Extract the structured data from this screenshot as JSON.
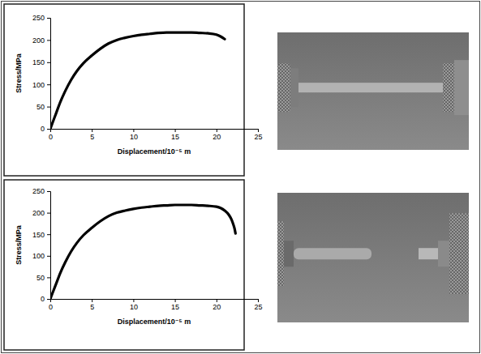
{
  "chart_data": [
    {
      "type": "line",
      "x_label": "Displacement/10⁻⁵ m",
      "y_label": "Stress/MPa",
      "x": [
        0,
        0.3,
        0.7,
        1.2,
        1.8,
        2.5,
        3.2,
        4.0,
        5.0,
        6.0,
        7.0,
        8.0,
        9.0,
        10.0,
        11.0,
        12.0,
        13.0,
        14.0,
        15.0,
        16.0,
        17.0,
        18.0,
        19.0,
        20.0,
        20.5,
        21.0
      ],
      "values": [
        0,
        15,
        35,
        60,
        85,
        110,
        130,
        148,
        165,
        180,
        192,
        200,
        205,
        209,
        212,
        214,
        216,
        217,
        217,
        217,
        217,
        216,
        215,
        212,
        208,
        202
      ],
      "color": "#000000",
      "xlim": [
        0,
        25
      ],
      "xticks": [
        0,
        5,
        10,
        15,
        20,
        25
      ],
      "ylim": [
        0,
        250
      ],
      "yticks": [
        0,
        50,
        100,
        150,
        200,
        250
      ]
    },
    {
      "type": "line",
      "x_label": "Displacement/10⁻⁵ m",
      "y_label": "Stress/MPa",
      "x": [
        0,
        0.3,
        0.7,
        1.2,
        1.8,
        2.5,
        3.2,
        4.0,
        5.0,
        6.0,
        7.0,
        8.0,
        9.0,
        10.0,
        11.0,
        12.0,
        13.0,
        14.0,
        15.0,
        16.0,
        17.0,
        18.0,
        19.0,
        20.0,
        20.5,
        21.0,
        21.5,
        21.8,
        22.0,
        22.2,
        22.3
      ],
      "values": [
        0,
        15,
        35,
        60,
        85,
        110,
        130,
        148,
        165,
        180,
        192,
        200,
        205,
        209,
        212,
        214,
        216,
        217,
        218,
        218,
        218,
        217,
        216,
        214,
        211,
        205,
        195,
        185,
        175,
        162,
        152
      ],
      "color": "#000000",
      "xlim": [
        0,
        25
      ],
      "xticks": [
        0,
        5,
        10,
        15,
        20,
        25
      ],
      "ylim": [
        0,
        250
      ],
      "yticks": [
        0,
        50,
        100,
        150,
        200,
        250
      ]
    }
  ]
}
